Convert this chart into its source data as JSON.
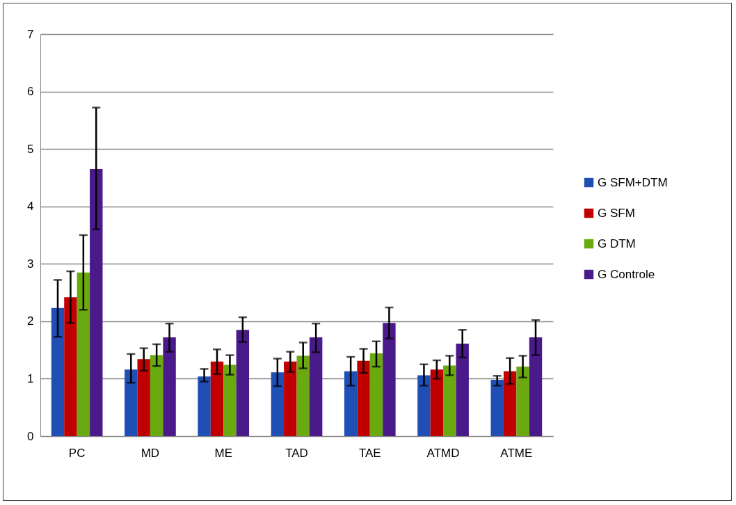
{
  "chart_data": {
    "type": "bar",
    "categories": [
      "PC",
      "MD",
      "ME",
      "TAD",
      "TAE",
      "ATMD",
      "ATME"
    ],
    "series": [
      {
        "name": "G SFM+DTM",
        "color": "#1f4fb5",
        "values": [
          2.23,
          1.16,
          1.04,
          1.11,
          1.13,
          1.06,
          0.98
        ],
        "errors": [
          [
            1.73,
            2.72
          ],
          [
            0.93,
            1.43
          ],
          [
            0.95,
            1.17
          ],
          [
            0.87,
            1.35
          ],
          [
            0.88,
            1.38
          ],
          [
            0.88,
            1.25
          ],
          [
            0.88,
            1.05
          ]
        ]
      },
      {
        "name": "G SFM",
        "color": "#c00000",
        "values": [
          2.42,
          1.34,
          1.3,
          1.3,
          1.31,
          1.16,
          1.13
        ],
        "errors": [
          [
            1.97,
            2.87
          ],
          [
            1.14,
            1.53
          ],
          [
            1.08,
            1.51
          ],
          [
            1.12,
            1.47
          ],
          [
            1.1,
            1.52
          ],
          [
            1.0,
            1.32
          ],
          [
            0.91,
            1.36
          ]
        ]
      },
      {
        "name": "G DTM",
        "color": "#6aaa10",
        "values": [
          2.85,
          1.41,
          1.24,
          1.4,
          1.44,
          1.23,
          1.21
        ],
        "errors": [
          [
            2.2,
            3.5
          ],
          [
            1.22,
            1.6
          ],
          [
            1.07,
            1.41
          ],
          [
            1.18,
            1.63
          ],
          [
            1.21,
            1.65
          ],
          [
            1.06,
            1.4
          ],
          [
            1.02,
            1.4
          ]
        ]
      },
      {
        "name": "G Controle",
        "color": "#4b1a8a",
        "values": [
          4.65,
          1.72,
          1.85,
          1.72,
          1.97,
          1.61,
          1.72
        ],
        "errors": [
          [
            3.6,
            5.72
          ],
          [
            1.47,
            1.96
          ],
          [
            1.64,
            2.07
          ],
          [
            1.46,
            1.96
          ],
          [
            1.7,
            2.24
          ],
          [
            1.37,
            1.85
          ],
          [
            1.41,
            2.02
          ]
        ]
      }
    ],
    "ylim": [
      0,
      7
    ],
    "yticks": [
      0,
      1,
      2,
      3,
      4,
      5,
      6,
      7
    ],
    "grid": "y",
    "legend": "right"
  }
}
